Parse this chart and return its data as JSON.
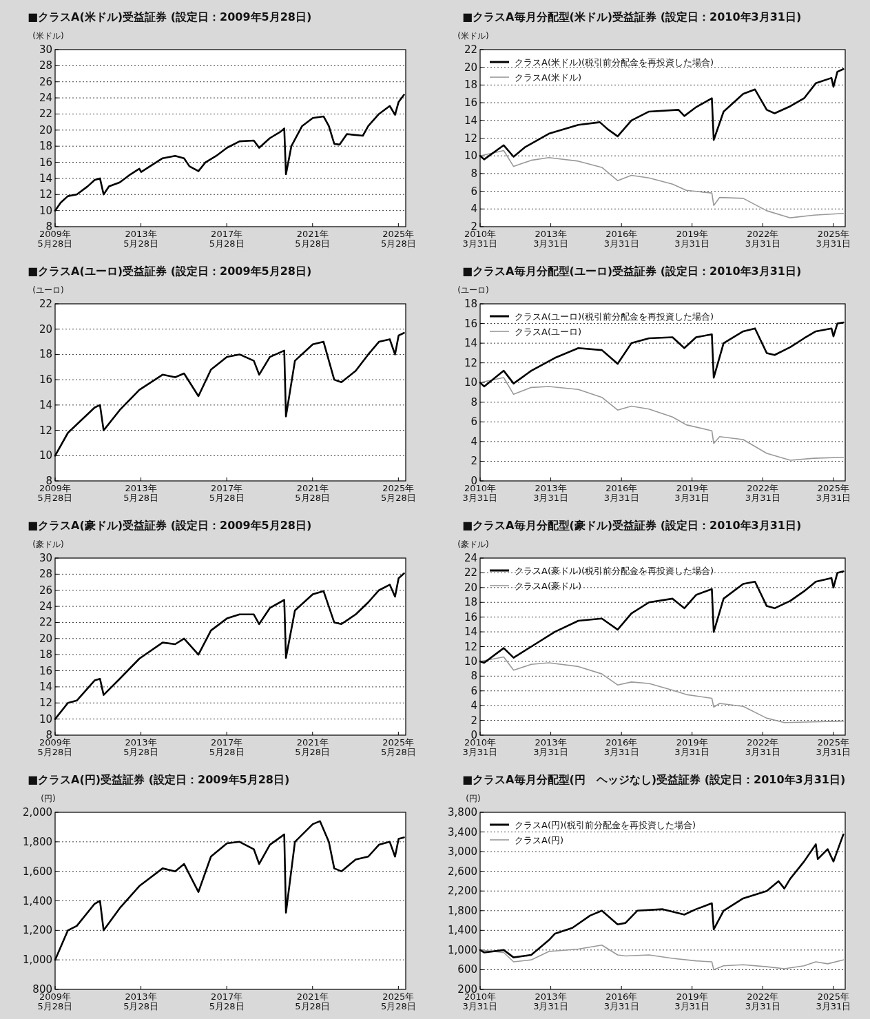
{
  "chart_data": [
    {
      "type": "line",
      "title": "■クラスA(米ドル)受益証券 (設定日：2009年5月28日)",
      "ylabel": "(米ドル)",
      "grid": "y",
      "legend": false,
      "xlim": [
        "2009-05-28",
        "2025-09-30"
      ],
      "ylim": [
        8,
        30
      ],
      "yticks": [
        8,
        10,
        12,
        14,
        16,
        18,
        20,
        22,
        24,
        26,
        28,
        30
      ],
      "xticks": [
        {
          "value": "2009-05-28",
          "label": "2009年\n5月28日"
        },
        {
          "value": "2013-05-28",
          "label": "2013年\n5月28日"
        },
        {
          "value": "2017-05-28",
          "label": "2017年\n5月28日"
        },
        {
          "value": "2021-05-28",
          "label": "2021年\n5月28日"
        },
        {
          "value": "2025-05-28",
          "label": "2025年\n5月28日"
        }
      ],
      "series": [
        {
          "color": "#000000",
          "x": [
            "2009-05-28",
            "2009-09",
            "2010-01",
            "2010-06",
            "2010-12",
            "2011-04",
            "2011-07",
            "2011-09",
            "2011-12",
            "2012-06",
            "2012-12",
            "2013-05",
            "2013-06",
            "2014-01",
            "2014-06",
            "2015-01",
            "2015-06",
            "2015-09",
            "2016-02",
            "2016-06",
            "2016-12",
            "2017-06",
            "2018-01",
            "2018-09",
            "2018-12",
            "2019-06",
            "2019-12",
            "2020-02",
            "2020-03",
            "2020-06",
            "2020-12",
            "2021-06",
            "2021-12",
            "2022-03",
            "2022-06",
            "2022-09",
            "2023-01",
            "2023-10",
            "2024-01",
            "2024-07",
            "2025-01",
            "2025-04",
            "2025-06",
            "2025-09"
          ],
          "values": [
            10,
            11,
            11.8,
            12,
            13,
            13.8,
            14,
            12,
            13,
            13.5,
            14.5,
            15.2,
            14.8,
            15.8,
            16.5,
            16.8,
            16.5,
            15.5,
            14.9,
            16,
            16.8,
            17.8,
            18.6,
            18.7,
            17.8,
            19,
            19.8,
            20.2,
            14.5,
            18,
            20.5,
            21.5,
            21.7,
            20.5,
            18.3,
            18.2,
            19.5,
            19.3,
            20.5,
            22,
            23,
            21.9,
            23.5,
            24.4
          ]
        }
      ]
    },
    {
      "type": "line",
      "title": "■クラスA毎月分配型(米ドル)受益証券 (設定日：2010年3月31日)",
      "ylabel": "(米ドル)",
      "grid": "y",
      "legend": "top left",
      "xlim": [
        "2010-03-31",
        "2025-09-30"
      ],
      "ylim": [
        2,
        22
      ],
      "yticks": [
        2,
        4,
        6,
        8,
        10,
        12,
        14,
        16,
        18,
        20,
        22
      ],
      "xticks": [
        {
          "value": "2010-03-31",
          "label": "2010年\n3月31日"
        },
        {
          "value": "2013-03-31",
          "label": "2013年\n3月31日"
        },
        {
          "value": "2016-03-31",
          "label": "2016年\n3月31日"
        },
        {
          "value": "2019-03-31",
          "label": "2019年\n3月31日"
        },
        {
          "value": "2022-03-31",
          "label": "2022年\n3月31日"
        },
        {
          "value": "2025-03-31",
          "label": "2025年\n3月31日"
        }
      ],
      "series": [
        {
          "name": "クラスA(米ドル)(税引前分配金を再投資した場合)",
          "color": "#000000",
          "x": [
            "2010-03-31",
            "2010-06",
            "2011-04",
            "2011-09",
            "2012-03",
            "2013-03",
            "2014-06",
            "2015-05",
            "2015-09",
            "2016-02",
            "2016-09",
            "2017-06",
            "2018-09",
            "2018-12",
            "2019-06",
            "2020-02",
            "2020-03",
            "2020-08",
            "2021-06",
            "2021-12",
            "2022-06",
            "2022-10",
            "2023-06",
            "2024-01",
            "2024-07",
            "2025-03",
            "2025-04",
            "2025-06",
            "2025-09"
          ],
          "values": [
            10,
            9.6,
            11.2,
            9.9,
            11,
            12.5,
            13.5,
            13.8,
            13,
            12.2,
            14,
            15,
            15.2,
            14.5,
            15.5,
            16.5,
            11.8,
            15,
            17,
            17.5,
            15.2,
            14.8,
            15.6,
            16.5,
            18.2,
            18.8,
            17.8,
            19.5,
            19.8
          ]
        },
        {
          "name": "クラスA(米ドル)",
          "color": "#999999",
          "x": [
            "2010-03-31",
            "2011-04",
            "2011-09",
            "2012-06",
            "2013-03",
            "2014-06",
            "2015-06",
            "2016-02",
            "2016-09",
            "2017-06",
            "2018-06",
            "2019-01",
            "2020-02",
            "2020-03",
            "2020-06",
            "2021-06",
            "2022-06",
            "2023-06",
            "2024-06",
            "2025-09"
          ],
          "values": [
            10,
            10.6,
            8.8,
            9.5,
            9.8,
            9.4,
            8.7,
            7.2,
            7.8,
            7.5,
            6.8,
            6.1,
            5.8,
            4.4,
            5.3,
            5.2,
            3.8,
            3.0,
            3.3,
            3.5
          ]
        }
      ]
    },
    {
      "type": "line",
      "title": "■クラスA(ユーロ)受益証券 (設定日：2009年5月28日)",
      "ylabel": "(ユーロ)",
      "grid": "y",
      "legend": false,
      "xlim": [
        "2009-05-28",
        "2025-09-30"
      ],
      "ylim": [
        8,
        22
      ],
      "yticks": [
        8,
        10,
        12,
        14,
        16,
        18,
        20,
        22
      ],
      "xticks": [
        {
          "value": "2009-05-28",
          "label": "2009年\n5月28日"
        },
        {
          "value": "2013-05-28",
          "label": "2013年\n5月28日"
        },
        {
          "value": "2017-05-28",
          "label": "2017年\n5月28日"
        },
        {
          "value": "2021-05-28",
          "label": "2021年\n5月28日"
        },
        {
          "value": "2025-05-28",
          "label": "2025年\n5月28日"
        }
      ],
      "series": [
        {
          "color": "#000000",
          "x": [
            "2009-05-28",
            "2010-01",
            "2011-04",
            "2011-07",
            "2011-09",
            "2012-06",
            "2013-05",
            "2014-06",
            "2015-01",
            "2015-06",
            "2016-02",
            "2016-09",
            "2017-06",
            "2018-01",
            "2018-09",
            "2018-12",
            "2019-06",
            "2020-02",
            "2020-03",
            "2020-08",
            "2021-06",
            "2021-12",
            "2022-06",
            "2022-10",
            "2023-06",
            "2024-01",
            "2024-07",
            "2025-01",
            "2025-04",
            "2025-06",
            "2025-09"
          ],
          "values": [
            10,
            11.8,
            13.8,
            14,
            12,
            13.6,
            15.2,
            16.4,
            16.2,
            16.5,
            14.7,
            16.8,
            17.8,
            18,
            17.5,
            16.4,
            17.8,
            18.3,
            13.1,
            17.5,
            18.8,
            19,
            16,
            15.8,
            16.7,
            18,
            19,
            19.2,
            18,
            19.5,
            19.7
          ]
        }
      ]
    },
    {
      "type": "line",
      "title": "■クラスA毎月分配型(ユーロ)受益証券 (設定日：2010年3月31日)",
      "ylabel": "(ユーロ)",
      "grid": "y",
      "legend": "top left",
      "xlim": [
        "2010-03-31",
        "2025-09-30"
      ],
      "ylim": [
        0,
        18
      ],
      "yticks": [
        0,
        2,
        4,
        6,
        8,
        10,
        12,
        14,
        16,
        18
      ],
      "xticks": [
        {
          "value": "2010-03-31",
          "label": "2010年\n3月31日"
        },
        {
          "value": "2013-03-31",
          "label": "2013年\n3月31日"
        },
        {
          "value": "2016-03-31",
          "label": "2016年\n3月31日"
        },
        {
          "value": "2019-03-31",
          "label": "2019年\n3月31日"
        },
        {
          "value": "2022-03-31",
          "label": "2022年\n3月31日"
        },
        {
          "value": "2025-03-31",
          "label": "2025年\n3月31日"
        }
      ],
      "series": [
        {
          "name": "クラスA(ユーロ)(税引前分配金を再投資した場合)",
          "color": "#000000",
          "x": [
            "2010-03-31",
            "2010-06",
            "2011-04",
            "2011-09",
            "2012-06",
            "2013-06",
            "2014-06",
            "2015-06",
            "2016-02",
            "2016-09",
            "2017-06",
            "2018-06",
            "2018-12",
            "2019-06",
            "2020-02",
            "2020-03",
            "2020-08",
            "2021-06",
            "2021-12",
            "2022-06",
            "2022-10",
            "2023-06",
            "2024-01",
            "2024-07",
            "2025-03",
            "2025-04",
            "2025-06",
            "2025-09"
          ],
          "values": [
            10,
            9.6,
            11.2,
            9.9,
            11.2,
            12.5,
            13.5,
            13.3,
            11.9,
            14,
            14.5,
            14.6,
            13.5,
            14.6,
            14.9,
            10.5,
            14,
            15.2,
            15.5,
            13,
            12.8,
            13.6,
            14.5,
            15.2,
            15.5,
            14.7,
            16,
            16.1
          ]
        },
        {
          "name": "クラスA(ユーロ)",
          "color": "#999999",
          "x": [
            "2010-03-31",
            "2011-04",
            "2011-09",
            "2012-06",
            "2013-03",
            "2014-06",
            "2015-06",
            "2016-02",
            "2016-09",
            "2017-06",
            "2018-06",
            "2019-01",
            "2020-02",
            "2020-03",
            "2020-06",
            "2021-06",
            "2022-06",
            "2023-06",
            "2024-06",
            "2025-09"
          ],
          "values": [
            10,
            10.5,
            8.8,
            9.5,
            9.6,
            9.3,
            8.5,
            7.2,
            7.6,
            7.3,
            6.5,
            5.7,
            5.1,
            3.8,
            4.5,
            4.2,
            2.8,
            2.1,
            2.3,
            2.4
          ]
        }
      ]
    },
    {
      "type": "line",
      "title": "■クラスA(豪ドル)受益証券 (設定日：2009年5月28日)",
      "ylabel": "(豪ドル)",
      "grid": "y",
      "legend": false,
      "xlim": [
        "2009-05-28",
        "2025-09-30"
      ],
      "ylim": [
        8,
        30
      ],
      "yticks": [
        8,
        10,
        12,
        14,
        16,
        18,
        20,
        22,
        24,
        26,
        28,
        30
      ],
      "xticks": [
        {
          "value": "2009-05-28",
          "label": "2009年\n5月28日"
        },
        {
          "value": "2013-05-28",
          "label": "2013年\n5月28日"
        },
        {
          "value": "2017-05-28",
          "label": "2017年\n5月28日"
        },
        {
          "value": "2021-05-28",
          "label": "2021年\n5月28日"
        },
        {
          "value": "2025-05-28",
          "label": "2025年\n5月28日"
        }
      ],
      "series": [
        {
          "color": "#000000",
          "x": [
            "2009-05-28",
            "2010-01",
            "2010-06",
            "2011-04",
            "2011-07",
            "2011-09",
            "2012-06",
            "2013-05",
            "2014-06",
            "2015-01",
            "2015-06",
            "2016-02",
            "2016-09",
            "2017-06",
            "2018-01",
            "2018-09",
            "2018-12",
            "2019-06",
            "2020-02",
            "2020-03",
            "2020-08",
            "2021-06",
            "2021-12",
            "2022-06",
            "2022-10",
            "2023-06",
            "2024-01",
            "2024-07",
            "2025-01",
            "2025-04",
            "2025-06",
            "2025-09"
          ],
          "values": [
            10,
            12,
            12.3,
            14.8,
            15,
            13,
            15,
            17.5,
            19.5,
            19.3,
            20,
            18,
            21,
            22.5,
            23,
            23,
            21.8,
            23.8,
            24.8,
            17.6,
            23.5,
            25.5,
            25.9,
            22,
            21.8,
            23,
            24.5,
            26,
            26.7,
            25.2,
            27.5,
            28.1
          ]
        }
      ]
    },
    {
      "type": "line",
      "title": "■クラスA毎月分配型(豪ドル)受益証券 (設定日：2010年3月31日)",
      "ylabel": "(豪ドル)",
      "grid": "y",
      "legend": "top left",
      "xlim": [
        "2010-03-31",
        "2025-09-30"
      ],
      "ylim": [
        0,
        24
      ],
      "yticks": [
        0,
        2,
        4,
        6,
        8,
        10,
        12,
        14,
        16,
        18,
        20,
        22,
        24
      ],
      "xticks": [
        {
          "value": "2010-03-31",
          "label": "2010年\n3月31日"
        },
        {
          "value": "2013-03-31",
          "label": "2013年\n3月31日"
        },
        {
          "value": "2016-03-31",
          "label": "2016年\n3月31日"
        },
        {
          "value": "2019-03-31",
          "label": "2019年\n3月31日"
        },
        {
          "value": "2022-03-31",
          "label": "2022年\n3月31日"
        },
        {
          "value": "2025-03-31",
          "label": "2025年\n3月31日"
        }
      ],
      "series": [
        {
          "name": "クラスA(豪ドル)(税引前分配金を再投資した場合)",
          "color": "#000000",
          "x": [
            "2010-03-31",
            "2010-06",
            "2011-04",
            "2011-09",
            "2012-06",
            "2013-06",
            "2014-06",
            "2015-06",
            "2016-02",
            "2016-09",
            "2017-06",
            "2018-06",
            "2018-12",
            "2019-06",
            "2020-02",
            "2020-03",
            "2020-08",
            "2021-06",
            "2021-12",
            "2022-06",
            "2022-10",
            "2023-06",
            "2024-01",
            "2024-07",
            "2025-03",
            "2025-04",
            "2025-06",
            "2025-09"
          ],
          "values": [
            10,
            9.8,
            11.8,
            10.5,
            12,
            14,
            15.5,
            15.8,
            14.3,
            16.5,
            18,
            18.5,
            17.2,
            19,
            19.8,
            14,
            18.5,
            20.5,
            20.8,
            17.5,
            17.2,
            18.2,
            19.5,
            20.8,
            21.3,
            20,
            22,
            22.2
          ]
        },
        {
          "name": "クラスA(豪ドル)",
          "color": "#999999",
          "x": [
            "2010-03-31",
            "2011-04",
            "2011-09",
            "2012-06",
            "2013-03",
            "2014-06",
            "2015-06",
            "2016-02",
            "2016-09",
            "2017-06",
            "2018-06",
            "2019-01",
            "2020-02",
            "2020-03",
            "2020-06",
            "2021-06",
            "2022-06",
            "2023-03",
            "2024-06",
            "2025-09"
          ],
          "values": [
            10,
            10.6,
            8.8,
            9.6,
            9.8,
            9.3,
            8.3,
            6.8,
            7.2,
            7,
            6.1,
            5.5,
            5,
            3.8,
            4.3,
            3.9,
            2.3,
            1.7,
            1.8,
            1.9
          ]
        }
      ]
    },
    {
      "type": "line",
      "title": "■クラスA(円)受益証券 (設定日：2009年5月28日)",
      "ylabel": "(円)",
      "grid": "y",
      "legend": false,
      "xlim": [
        "2009-05-28",
        "2025-09-30"
      ],
      "ylim": [
        800,
        2000
      ],
      "yticks": [
        {
          "value": 800,
          "label": "800"
        },
        {
          "value": 1000,
          "label": "1,000"
        },
        {
          "value": 1200,
          "label": "1,200"
        },
        {
          "value": 1400,
          "label": "1,400"
        },
        {
          "value": 1600,
          "label": "1,600"
        },
        {
          "value": 1800,
          "label": "1,800"
        },
        {
          "value": 2000,
          "label": "2,000"
        }
      ],
      "xticks": [
        {
          "value": "2009-05-28",
          "label": "2009年\n5月28日"
        },
        {
          "value": "2013-05-28",
          "label": "2013年\n5月28日"
        },
        {
          "value": "2017-05-28",
          "label": "2017年\n5月28日"
        },
        {
          "value": "2021-05-28",
          "label": "2021年\n5月28日"
        },
        {
          "value": "2025-05-28",
          "label": "2025年\n5月28日"
        }
      ],
      "series": [
        {
          "color": "#000000",
          "x": [
            "2009-05-28",
            "2010-01",
            "2010-06",
            "2011-04",
            "2011-07",
            "2011-09",
            "2012-06",
            "2013-05",
            "2014-06",
            "2015-01",
            "2015-06",
            "2016-02",
            "2016-09",
            "2017-06",
            "2018-01",
            "2018-09",
            "2018-12",
            "2019-06",
            "2020-02",
            "2020-03",
            "2020-08",
            "2021-06",
            "2021-10",
            "2022-03",
            "2022-06",
            "2022-10",
            "2023-06",
            "2024-01",
            "2024-07",
            "2025-01",
            "2025-04",
            "2025-06",
            "2025-09"
          ],
          "values": [
            1000,
            1200,
            1230,
            1380,
            1400,
            1200,
            1350,
            1500,
            1620,
            1600,
            1650,
            1460,
            1700,
            1790,
            1800,
            1750,
            1650,
            1780,
            1850,
            1320,
            1800,
            1920,
            1940,
            1800,
            1620,
            1600,
            1680,
            1700,
            1780,
            1800,
            1700,
            1820,
            1830
          ]
        }
      ]
    },
    {
      "type": "line",
      "title": "■クラスA毎月分配型(円　ヘッジなし)受益証券 (設定日：2010年3月31日)",
      "ylabel": "(円)",
      "grid": "y",
      "legend": "top left",
      "xlim": [
        "2010-03-31",
        "2025-09-30"
      ],
      "ylim": [
        200,
        3800
      ],
      "yticks": [
        {
          "value": 200,
          "label": "200"
        },
        {
          "value": 600,
          "label": "600"
        },
        {
          "value": 1000,
          "label": "1,000"
        },
        {
          "value": 1400,
          "label": "1,400"
        },
        {
          "value": 1800,
          "label": "1,800"
        },
        {
          "value": 2200,
          "label": "2,200"
        },
        {
          "value": 2600,
          "label": "2,600"
        },
        {
          "value": 3000,
          "label": "3,000"
        },
        {
          "value": 3400,
          "label": "3,400"
        },
        {
          "value": 3800,
          "label": "3,800"
        }
      ],
      "xticks": [
        {
          "value": "2010-03-31",
          "label": "2010年\n3月31日"
        },
        {
          "value": "2013-03-31",
          "label": "2013年\n3月31日"
        },
        {
          "value": "2016-03-31",
          "label": "2016年\n3月31日"
        },
        {
          "value": "2019-03-31",
          "label": "2019年\n3月31日"
        },
        {
          "value": "2022-03-31",
          "label": "2022年\n3月31日"
        },
        {
          "value": "2025-03-31",
          "label": "2025年\n3月31日"
        }
      ],
      "series": [
        {
          "name": "クラスA(円)(税引前分配金を再投資した場合)",
          "color": "#000000",
          "x": [
            "2010-03-31",
            "2010-06",
            "2011-04",
            "2011-09",
            "2012-06",
            "2013-03",
            "2013-06",
            "2014-03",
            "2014-12",
            "2015-06",
            "2016-02",
            "2016-06",
            "2016-12",
            "2018-01",
            "2018-12",
            "2019-06",
            "2020-02",
            "2020-03",
            "2020-08",
            "2021-06",
            "2022-06",
            "2022-12",
            "2023-03",
            "2023-06",
            "2024-01",
            "2024-07",
            "2024-08",
            "2025-01",
            "2025-04",
            "2025-09"
          ],
          "values": [
            1000,
            950,
            1000,
            850,
            900,
            1200,
            1330,
            1450,
            1700,
            1800,
            1520,
            1550,
            1800,
            1830,
            1720,
            1830,
            1950,
            1420,
            1800,
            2050,
            2200,
            2400,
            2250,
            2450,
            2800,
            3150,
            2850,
            3050,
            2800,
            3350
          ]
        },
        {
          "name": "クラスA(円)",
          "color": "#999999",
          "x": [
            "2010-03-31",
            "2011-04",
            "2011-09",
            "2012-06",
            "2013-03",
            "2014-06",
            "2015-06",
            "2016-02",
            "2016-06",
            "2017-06",
            "2018-06",
            "2019-06",
            "2020-02",
            "2020-03",
            "2020-08",
            "2021-06",
            "2022-06",
            "2023-03",
            "2024-01",
            "2024-07",
            "2025-01",
            "2025-09"
          ],
          "values": [
            1000,
            950,
            760,
            800,
            970,
            1020,
            1100,
            900,
            880,
            900,
            830,
            780,
            760,
            600,
            680,
            700,
            660,
            620,
            680,
            760,
            720,
            800
          ]
        }
      ]
    }
  ]
}
